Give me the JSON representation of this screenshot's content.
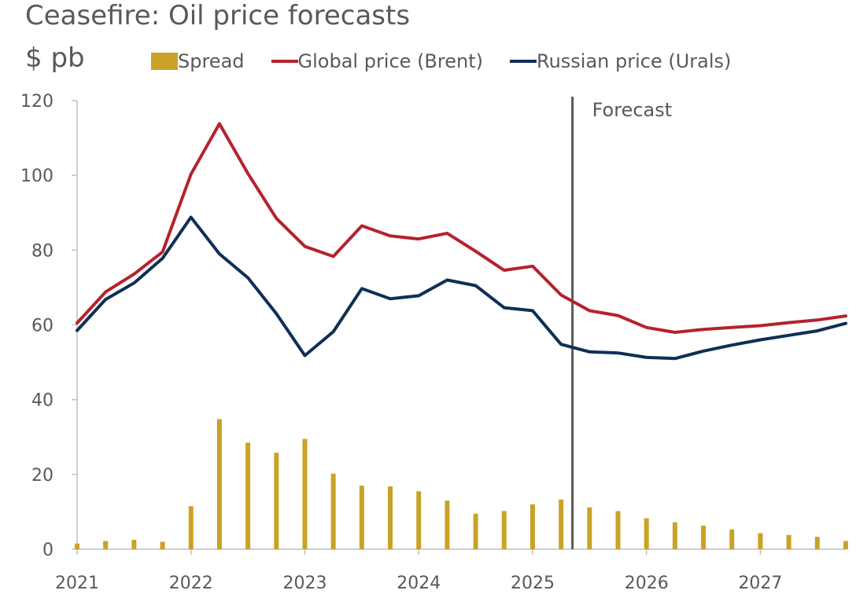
{
  "chart_data": {
    "type": "bar+line",
    "title": "Ceasefire: Oil price forecasts",
    "ylabel": "$ pb",
    "ylim": [
      0,
      120
    ],
    "yticks": [
      "0",
      "20",
      "40",
      "60",
      "80",
      "100",
      "120"
    ],
    "xlim": [
      2021.0,
      2027.75
    ],
    "xticks": [
      "2021",
      "2022",
      "2023",
      "2024",
      "2025",
      "2026",
      "2027"
    ],
    "x": [
      2021.0,
      2021.25,
      2021.5,
      2021.75,
      2022.0,
      2022.25,
      2022.5,
      2022.75,
      2023.0,
      2023.25,
      2023.5,
      2023.75,
      2024.0,
      2024.25,
      2024.5,
      2024.75,
      2025.0,
      2025.25,
      2025.5,
      2025.75,
      2026.0,
      2026.25,
      2026.5,
      2026.75,
      2027.0,
      2027.25,
      2027.5,
      2027.75
    ],
    "series": [
      {
        "name": "Spread",
        "kind": "bar",
        "color": "#C9A227",
        "values": [
          1.5,
          2.2,
          2.5,
          2.0,
          11.5,
          34.8,
          28.5,
          25.8,
          29.5,
          20.2,
          17.0,
          16.8,
          15.5,
          13.0,
          9.5,
          10.2,
          12.0,
          13.3,
          11.2,
          10.2,
          8.3,
          7.2,
          6.3,
          5.3,
          4.3,
          3.8,
          3.3,
          2.2
        ]
      },
      {
        "name": "Global price (Brent)",
        "kind": "line",
        "color": "#B5222D",
        "values": [
          60.5,
          68.8,
          73.6,
          79.5,
          100.3,
          113.8,
          100.5,
          88.5,
          81.0,
          78.3,
          86.5,
          83.8,
          83.0,
          84.5,
          79.7,
          74.6,
          75.7,
          68.0,
          63.8,
          62.5,
          59.3,
          58.0,
          58.8,
          59.3,
          59.8,
          60.6,
          61.3,
          62.4
        ]
      },
      {
        "name": "Russian price (Urals)",
        "kind": "line",
        "color": "#0E2F56",
        "values": [
          58.5,
          66.8,
          71.2,
          77.8,
          88.8,
          79.0,
          72.6,
          63.0,
          51.8,
          58.2,
          69.7,
          67.0,
          67.8,
          72.0,
          70.5,
          64.6,
          63.8,
          54.8,
          52.8,
          52.5,
          51.3,
          51.0,
          53.0,
          54.6,
          56.0,
          57.2,
          58.4,
          60.4
        ]
      }
    ],
    "annotations": [
      {
        "text": "Forecast",
        "x": 2025.35
      }
    ]
  }
}
